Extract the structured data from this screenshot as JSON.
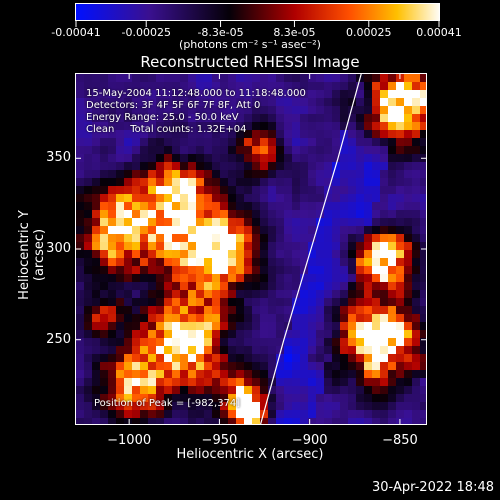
{
  "colorbar": {
    "tick_labels": [
      "-0.00041",
      "-0.00025",
      "-8.3e-05",
      "8.3e-05",
      "0.00025",
      "0.00041"
    ],
    "tick_values": [
      -0.00041,
      -0.00025,
      -8.3e-05,
      8.3e-05,
      0.00025,
      0.00041
    ],
    "range": [
      -0.00041,
      0.00041
    ],
    "units": "(photons cm⁻² s⁻¹ asec⁻²)",
    "colors": [
      "#0000ff",
      "#3a0080",
      "#000000",
      "#a00000",
      "#ff6000",
      "#ffc000",
      "#ffffff"
    ]
  },
  "chart_data": {
    "type": "heatmap",
    "title": "Reconstructed RHESSI Image",
    "xlabel": "Heliocentric X (arcsec)",
    "ylabel": "Heliocentric Y (arcsec)",
    "xlim": [
      -1030,
      -835
    ],
    "ylim": [
      203,
      397
    ],
    "x_ticks": [
      -1000,
      -950,
      -900,
      -850
    ],
    "x_tick_labels": [
      "−1000",
      "−950",
      "−900",
      "−850"
    ],
    "y_ticks": [
      250,
      300,
      350
    ],
    "y_tick_labels": [
      "250",
      "300",
      "350"
    ],
    "limb_curve": [
      [
        -928,
        203
      ],
      [
        -915,
        250
      ],
      [
        -900,
        300
      ],
      [
        -885,
        350
      ],
      [
        -872,
        397
      ]
    ],
    "bright_sources": [
      {
        "x": -1005,
        "y": 310,
        "r": 22,
        "v": 0.8
      },
      {
        "x": -975,
        "y": 330,
        "r": 20,
        "v": 0.75
      },
      {
        "x": -955,
        "y": 300,
        "r": 22,
        "v": 0.9
      },
      {
        "x": -970,
        "y": 250,
        "r": 25,
        "v": 0.8
      },
      {
        "x": -1000,
        "y": 225,
        "r": 18,
        "v": 0.6
      },
      {
        "x": -935,
        "y": 215,
        "r": 14,
        "v": 0.85
      },
      {
        "x": -850,
        "y": 380,
        "r": 20,
        "v": 0.95
      },
      {
        "x": -860,
        "y": 295,
        "r": 16,
        "v": 0.85
      },
      {
        "x": -862,
        "y": 250,
        "r": 22,
        "v": 0.9
      },
      {
        "x": -1015,
        "y": 265,
        "r": 10,
        "v": 0.5
      },
      {
        "x": -930,
        "y": 355,
        "r": 12,
        "v": 0.5
      }
    ]
  },
  "annotations": {
    "line1": "15-May-2004 11:12:48.000 to 11:18:48.000",
    "line2": "Detectors: 3F 4F 5F 6F 7F 8F, Att 0",
    "line3": "Energy Range: 25.0 - 50.0 keV",
    "line4": "Clean     Total counts: 1.32E+04",
    "peak": "Position of Peak = [-982,374]"
  },
  "timestamp": "30-Apr-2022 18:48"
}
